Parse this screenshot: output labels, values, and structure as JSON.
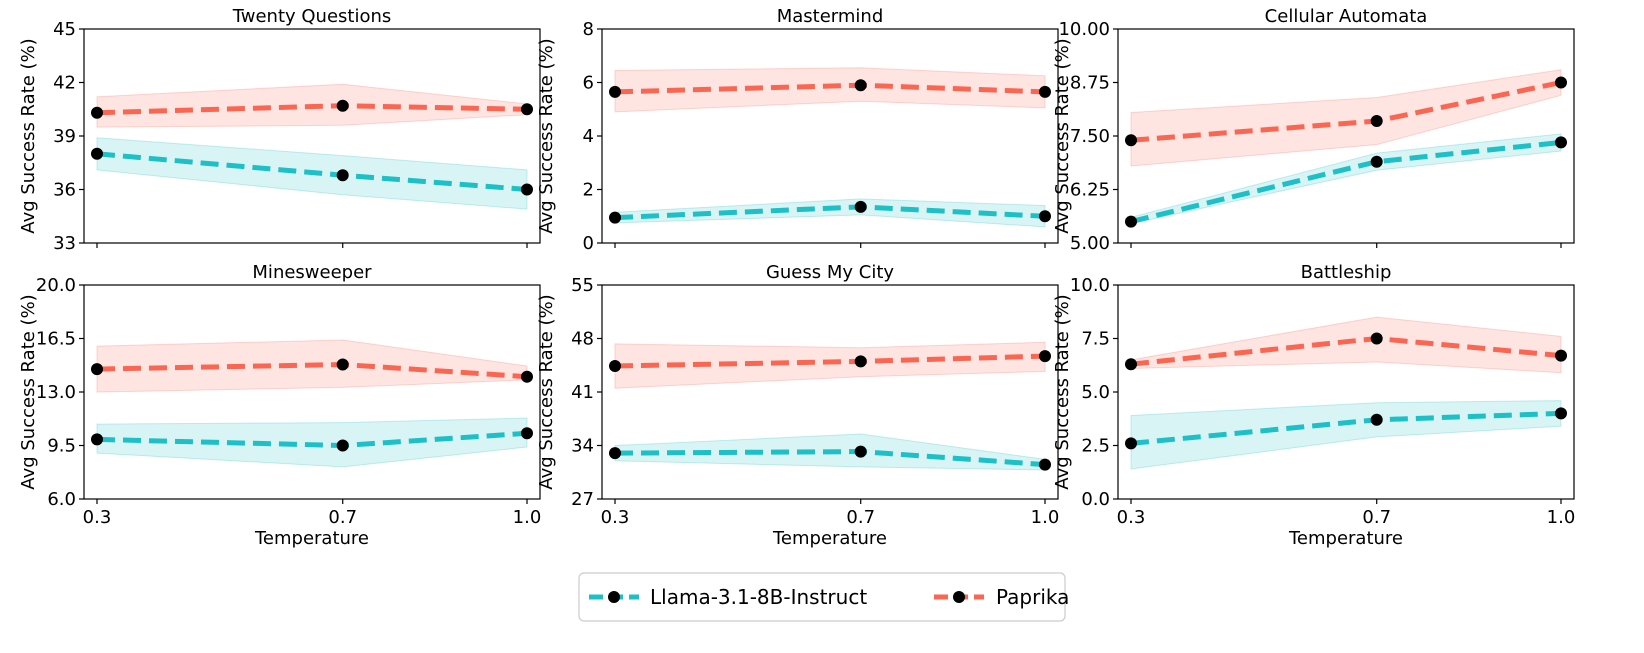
{
  "colors": {
    "llama": "#1cc0c6",
    "paprika": "#fa6652",
    "marker": "#000000"
  },
  "legend": {
    "series_names": [
      "Llama-3.1-8B-Instruct",
      "Paprika"
    ],
    "location": "bottom-center"
  },
  "chart_data": [
    {
      "type": "line",
      "title": "Twenty Questions",
      "xlabel": "",
      "ylabel": "Avg Success Rate (%)",
      "x": [
        0.3,
        0.7,
        1.0
      ],
      "xticks": [
        "0.3",
        "0.7",
        "1.0"
      ],
      "ylim": [
        33,
        45
      ],
      "yticks": [
        "33",
        "36",
        "39",
        "42",
        "45"
      ],
      "series": [
        {
          "name": "Llama-3.1-8B-Instruct",
          "values": [
            38.0,
            36.8,
            36.0
          ],
          "lower": [
            37.1,
            35.7,
            34.9
          ],
          "upper": [
            38.9,
            37.9,
            37.1
          ]
        },
        {
          "name": "Paprika",
          "values": [
            40.3,
            40.7,
            40.5
          ],
          "lower": [
            39.5,
            39.6,
            40.2
          ],
          "upper": [
            41.2,
            41.9,
            40.8
          ]
        }
      ]
    },
    {
      "type": "line",
      "title": "Mastermind",
      "xlabel": "",
      "ylabel": "Avg Success Rate (%)",
      "x": [
        0.3,
        0.7,
        1.0
      ],
      "xticks": [
        "0.3",
        "0.7",
        "1.0"
      ],
      "ylim": [
        0,
        8
      ],
      "yticks": [
        "0",
        "2",
        "4",
        "6",
        "8"
      ],
      "series": [
        {
          "name": "Llama-3.1-8B-Instruct",
          "values": [
            0.95,
            1.35,
            1.0
          ],
          "lower": [
            0.75,
            1.05,
            0.6
          ],
          "upper": [
            1.15,
            1.65,
            1.4
          ]
        },
        {
          "name": "Paprika",
          "values": [
            5.65,
            5.9,
            5.65
          ],
          "lower": [
            4.9,
            5.3,
            5.05
          ],
          "upper": [
            6.45,
            6.55,
            6.25
          ]
        }
      ]
    },
    {
      "type": "line",
      "title": "Cellular Automata",
      "xlabel": "",
      "ylabel": "Avg Success Rate (%)",
      "x": [
        0.3,
        0.7,
        1.0
      ],
      "xticks": [
        "0.3",
        "0.7",
        "1.0"
      ],
      "ylim": [
        5.0,
        10.0
      ],
      "yticks": [
        "5.00",
        "6.25",
        "7.50",
        "8.75",
        "10.00"
      ],
      "series": [
        {
          "name": "Llama-3.1-8B-Instruct",
          "values": [
            5.5,
            6.9,
            7.35
          ],
          "lower": [
            5.45,
            6.7,
            7.15
          ],
          "upper": [
            5.6,
            7.1,
            7.55
          ]
        },
        {
          "name": "Paprika",
          "values": [
            7.4,
            7.85,
            8.75
          ],
          "lower": [
            6.8,
            7.3,
            8.45
          ],
          "upper": [
            8.05,
            8.4,
            9.05
          ]
        }
      ]
    },
    {
      "type": "line",
      "title": "Minesweeper",
      "xlabel": "Temperature",
      "ylabel": "Avg Success Rate (%)",
      "x": [
        0.3,
        0.7,
        1.0
      ],
      "xticks": [
        "0.3",
        "0.7",
        "1.0"
      ],
      "ylim": [
        6.0,
        20.0
      ],
      "yticks": [
        "6.0",
        "9.5",
        "13.0",
        "16.5",
        "20.0"
      ],
      "series": [
        {
          "name": "Llama-3.1-8B-Instruct",
          "values": [
            9.9,
            9.5,
            10.3
          ],
          "lower": [
            9.0,
            8.1,
            9.4
          ],
          "upper": [
            10.9,
            11.0,
            11.3
          ]
        },
        {
          "name": "Paprika",
          "values": [
            14.5,
            14.8,
            14.0
          ],
          "lower": [
            13.0,
            13.3,
            13.8
          ],
          "upper": [
            16.0,
            16.4,
            14.7
          ]
        }
      ]
    },
    {
      "type": "line",
      "title": "Guess My City",
      "xlabel": "Temperature",
      "ylabel": "Avg Success Rate (%)",
      "x": [
        0.3,
        0.7,
        1.0
      ],
      "xticks": [
        "0.3",
        "0.7",
        "1.0"
      ],
      "ylim": [
        27,
        55
      ],
      "yticks": [
        "27",
        "34",
        "41",
        "48",
        "55"
      ],
      "series": [
        {
          "name": "Llama-3.1-8B-Instruct",
          "values": [
            33.0,
            33.2,
            31.5
          ],
          "lower": [
            32.0,
            31.2,
            30.8
          ],
          "upper": [
            34.0,
            35.5,
            32.2
          ]
        },
        {
          "name": "Paprika",
          "values": [
            44.4,
            45.0,
            45.7
          ],
          "lower": [
            41.5,
            43.0,
            43.7
          ],
          "upper": [
            47.3,
            46.8,
            47.5
          ]
        }
      ]
    },
    {
      "type": "line",
      "title": "Battleship",
      "xlabel": "Temperature",
      "ylabel": "Avg Success Rate (%)",
      "x": [
        0.3,
        0.7,
        1.0
      ],
      "xticks": [
        "0.3",
        "0.7",
        "1.0"
      ],
      "ylim": [
        0.0,
        10.0
      ],
      "yticks": [
        "0.0",
        "2.5",
        "5.0",
        "7.5",
        "10.0"
      ],
      "series": [
        {
          "name": "Llama-3.1-8B-Instruct",
          "values": [
            2.6,
            3.7,
            4.0
          ],
          "lower": [
            1.4,
            2.9,
            3.4
          ],
          "upper": [
            3.9,
            4.5,
            4.6
          ]
        },
        {
          "name": "Paprika",
          "values": [
            6.3,
            7.5,
            6.7
          ],
          "lower": [
            6.1,
            6.4,
            5.9
          ],
          "upper": [
            6.5,
            8.5,
            7.6
          ]
        }
      ]
    }
  ]
}
